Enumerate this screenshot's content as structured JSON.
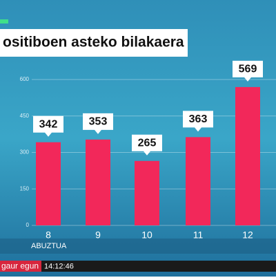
{
  "chart_data": {
    "type": "bar",
    "title": "ositiboen asteko bilakaera",
    "categories": [
      "8",
      "9",
      "10",
      "11",
      "12"
    ],
    "values": [
      342,
      353,
      265,
      363,
      569
    ],
    "color": "#f2285a",
    "ylim": [
      0,
      600
    ],
    "yticks": [
      0,
      150,
      300,
      450,
      600
    ],
    "grid": true,
    "x_label": "ABUZTUA"
  },
  "ticker": {
    "program": "gaur egun",
    "time": "14:12:46"
  }
}
